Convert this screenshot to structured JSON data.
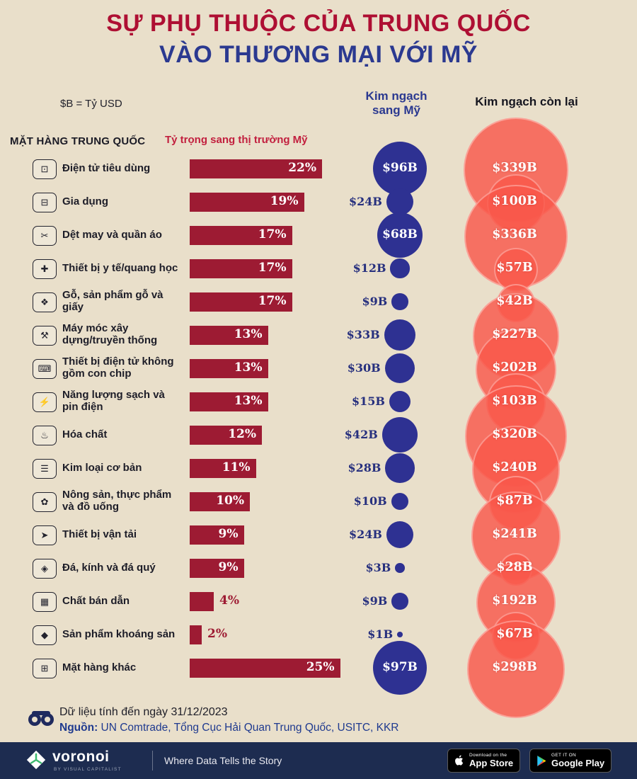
{
  "title": {
    "line1": "SỰ PHỤ THUỘC CỦA TRUNG QUỐC",
    "line2": "VÀO THƯƠNG MẠI VỚI MỸ"
  },
  "legend_note": "$B = Tỷ USD",
  "columns": {
    "items": "MẶT HÀNG TRUNG QUỐC",
    "share": "Tỷ trọng sang thị trường Mỹ",
    "us": "Kim ngạch sang Mỹ",
    "rest": "Kim ngạch còn lại"
  },
  "chart_data": {
    "type": "bar",
    "title": "Sự phụ thuộc của Trung Quốc vào thương mại với Mỹ",
    "xlabel": "Tỷ trọng sang thị trường Mỹ (%)",
    "ylabel": "Mặt hàng Trung Quốc",
    "units": "$B = Tỷ USD",
    "series_names": [
      "Tỷ trọng sang thị trường Mỹ",
      "Kim ngạch sang Mỹ",
      "Kim ngạch còn lại"
    ],
    "rows": [
      {
        "label": "Điện tử tiêu dùng",
        "icon": "monitor-icon",
        "glyph": "⊡",
        "share_pct": 22,
        "share_label": "22%",
        "us_b": 96,
        "us_label": "$96B",
        "rest_b": 339,
        "rest_label": "$339B"
      },
      {
        "label": "Gia dụng",
        "icon": "sofa-icon",
        "glyph": "⊟",
        "share_pct": 19,
        "share_label": "19%",
        "us_b": 24,
        "us_label": "$24B",
        "rest_b": 100,
        "rest_label": "$100B"
      },
      {
        "label": "Dệt may và quần áo",
        "icon": "shirt-icon",
        "glyph": "✂",
        "share_pct": 17,
        "share_label": "17%",
        "us_b": 68,
        "us_label": "$68B",
        "rest_b": 336,
        "rest_label": "$336B"
      },
      {
        "label": "Thiết bị y tế/quang học",
        "icon": "medical-icon",
        "glyph": "✚",
        "share_pct": 17,
        "share_label": "17%",
        "us_b": 12,
        "us_label": "$12B",
        "rest_b": 57,
        "rest_label": "$57B"
      },
      {
        "label": "Gỗ, sản phẩm gỗ và giấy",
        "icon": "wood-paper-icon",
        "glyph": "❖",
        "share_pct": 17,
        "share_label": "17%",
        "us_b": 9,
        "us_label": "$9B",
        "rest_b": 42,
        "rest_label": "$42B"
      },
      {
        "label": "Máy móc xây dựng/truyền thống",
        "icon": "construction-icon",
        "glyph": "⚒",
        "share_pct": 13,
        "share_label": "13%",
        "us_b": 33,
        "us_label": "$33B",
        "rest_b": 227,
        "rest_label": "$227B"
      },
      {
        "label": "Thiết bị điện tử không gồm con chip",
        "icon": "electronics-icon",
        "glyph": "⌨",
        "share_pct": 13,
        "share_label": "13%",
        "us_b": 30,
        "us_label": "$30B",
        "rest_b": 202,
        "rest_label": "$202B"
      },
      {
        "label": "Năng lượng sạch và pin điện",
        "icon": "battery-icon",
        "glyph": "⚡",
        "share_pct": 13,
        "share_label": "13%",
        "us_b": 15,
        "us_label": "$15B",
        "rest_b": 103,
        "rest_label": "$103B"
      },
      {
        "label": "Hóa chất",
        "icon": "chemical-icon",
        "glyph": "♨",
        "share_pct": 12,
        "share_label": "12%",
        "us_b": 42,
        "us_label": "$42B",
        "rest_b": 320,
        "rest_label": "$320B"
      },
      {
        "label": "Kim loại cơ bản",
        "icon": "metal-icon",
        "glyph": "☰",
        "share_pct": 11,
        "share_label": "11%",
        "us_b": 28,
        "us_label": "$28B",
        "rest_b": 240,
        "rest_label": "$240B"
      },
      {
        "label": "Nông sản, thực phẩm và đồ uống",
        "icon": "agriculture-icon",
        "glyph": "✿",
        "share_pct": 10,
        "share_label": "10%",
        "us_b": 10,
        "us_label": "$10B",
        "rest_b": 87,
        "rest_label": "$87B"
      },
      {
        "label": "Thiết bị vận tải",
        "icon": "transport-icon",
        "glyph": "➤",
        "share_pct": 9,
        "share_label": "9%",
        "us_b": 24,
        "us_label": "$24B",
        "rest_b": 241,
        "rest_label": "$241B"
      },
      {
        "label": "Đá, kính và đá quý",
        "icon": "gem-icon",
        "glyph": "◈",
        "share_pct": 9,
        "share_label": "9%",
        "us_b": 3,
        "us_label": "$3B",
        "rest_b": 28,
        "rest_label": "$28B"
      },
      {
        "label": "Chất bán dẫn",
        "icon": "chip-icon",
        "glyph": "▦",
        "share_pct": 4,
        "share_label": "4%",
        "us_b": 9,
        "us_label": "$9B",
        "rest_b": 192,
        "rest_label": "$192B"
      },
      {
        "label": "Sản phẩm khoáng sản",
        "icon": "mineral-icon",
        "glyph": "◆",
        "share_pct": 2,
        "share_label": "2%",
        "us_b": 1,
        "us_label": "$1B",
        "rest_b": 67,
        "rest_label": "$67B"
      },
      {
        "label": "Mặt hàng khác",
        "icon": "package-icon",
        "glyph": "⊞",
        "share_pct": 25,
        "share_label": "25%",
        "us_b": 97,
        "us_label": "$97B",
        "rest_b": 298,
        "rest_label": "$298B"
      }
    ]
  },
  "colors": {
    "background": "#e9dfca",
    "bar_maroon": "#9d1b33",
    "navy": "#2e3192",
    "coral": "#f9584a",
    "title_red": "#ae0f33",
    "title_navy": "#2b3990",
    "brandbar_navy": "#1d2c50"
  },
  "footer": {
    "note": "Dữ liệu tính đến ngày 31/12/2023",
    "source_label": "Nguồn:",
    "source_text": " UN Comtrade, Tổng Cục Hải Quan Trung Quốc, USITC, KKR"
  },
  "brand": {
    "name": "voronoi",
    "byline": "BY VISUAL CAPITALIST",
    "tagline": "Where Data Tells the Story",
    "appstore": {
      "small": "Download on the",
      "big": "App Store"
    },
    "googleplay": {
      "small": "GET IT ON",
      "big": "Google Play"
    }
  }
}
